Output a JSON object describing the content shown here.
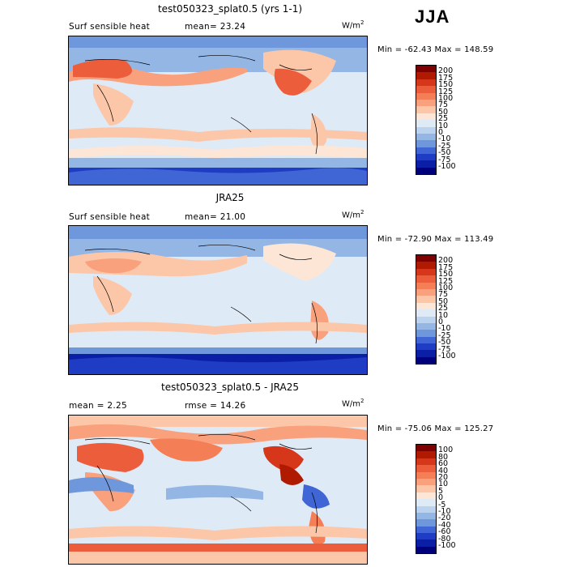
{
  "season": "JJA",
  "panels": [
    {
      "title": "test050323_splat0.5 (yrs 1-1)",
      "subtitle_left": "Surf sensible heat",
      "subtitle_mid": "mean=  23.24",
      "units": "W/m",
      "units_sup": "2",
      "minmax": "Min = -62.43 Max = 148.59",
      "colorbar_labels": [
        "200",
        "175",
        "150",
        "125",
        "100",
        "75",
        "50",
        "25",
        "10",
        "0",
        "-10",
        "-25",
        "-50",
        "-75",
        "-100"
      ],
      "colorbar_colors": [
        "#7f0000",
        "#b01a00",
        "#d6361a",
        "#ec5d3b",
        "#f47e55",
        "#f9a17d",
        "#fcc7a8",
        "#fde6d6",
        "#dfeaf7",
        "#bcd3ef",
        "#94b6e5",
        "#6f97dc",
        "#3f66d4",
        "#1f3cc5",
        "#0a1ea6",
        "#00007a"
      ]
    },
    {
      "title": "JRA25",
      "subtitle_left": "Surf sensible heat",
      "subtitle_mid": "mean=  21.00",
      "units": "W/m",
      "units_sup": "2",
      "minmax": "Min = -72.90 Max = 113.49",
      "colorbar_labels": [
        "200",
        "175",
        "150",
        "125",
        "100",
        "75",
        "50",
        "25",
        "10",
        "0",
        "-10",
        "-25",
        "-50",
        "-75",
        "-100"
      ],
      "colorbar_colors": [
        "#7f0000",
        "#b01a00",
        "#d6361a",
        "#ec5d3b",
        "#f47e55",
        "#f9a17d",
        "#fcc7a8",
        "#fde6d6",
        "#dfeaf7",
        "#bcd3ef",
        "#94b6e5",
        "#6f97dc",
        "#3f66d4",
        "#1f3cc5",
        "#0a1ea6",
        "#00007a"
      ]
    },
    {
      "title": "test050323_splat0.5 - JRA25",
      "subtitle_left": "mean =    2.25",
      "subtitle_mid": "rmse =  14.26",
      "units": "W/m",
      "units_sup": "2",
      "minmax": "Min = -75.06 Max = 125.27",
      "colorbar_labels": [
        "100",
        "80",
        "60",
        "40",
        "20",
        "10",
        "5",
        "0",
        "-5",
        "-10",
        "-20",
        "-40",
        "-60",
        "-80",
        "-100"
      ],
      "colorbar_colors": [
        "#7f0000",
        "#b01a00",
        "#d6361a",
        "#ec5d3b",
        "#f47e55",
        "#f9a17d",
        "#fcc7a8",
        "#fde6d6",
        "#dfeaf7",
        "#bcd3ef",
        "#94b6e5",
        "#6f97dc",
        "#3f66d4",
        "#1f3cc5",
        "#0a1ea6",
        "#00007a"
      ]
    }
  ],
  "chart_data": [
    {
      "type": "heatmap",
      "title": "test050323_splat0.5 (yrs 1-1)",
      "variable": "Surf sensible heat",
      "units": "W/m^2",
      "mean": 23.24,
      "min": -62.43,
      "max": 148.59,
      "levels": [
        -100,
        -75,
        -50,
        -25,
        -10,
        0,
        10,
        25,
        50,
        75,
        100,
        125,
        150,
        175,
        200
      ]
    },
    {
      "type": "heatmap",
      "title": "JRA25",
      "variable": "Surf sensible heat",
      "units": "W/m^2",
      "mean": 21.0,
      "min": -72.9,
      "max": 113.49,
      "levels": [
        -100,
        -75,
        -50,
        -25,
        -10,
        0,
        10,
        25,
        50,
        75,
        100,
        125,
        150,
        175,
        200
      ]
    },
    {
      "type": "heatmap",
      "title": "test050323_splat0.5 - JRA25",
      "units": "W/m^2",
      "mean": 2.25,
      "rmse": 14.26,
      "min": -75.06,
      "max": 125.27,
      "levels": [
        -100,
        -80,
        -60,
        -40,
        -20,
        -10,
        -5,
        0,
        5,
        10,
        20,
        40,
        60,
        80,
        100
      ]
    }
  ]
}
